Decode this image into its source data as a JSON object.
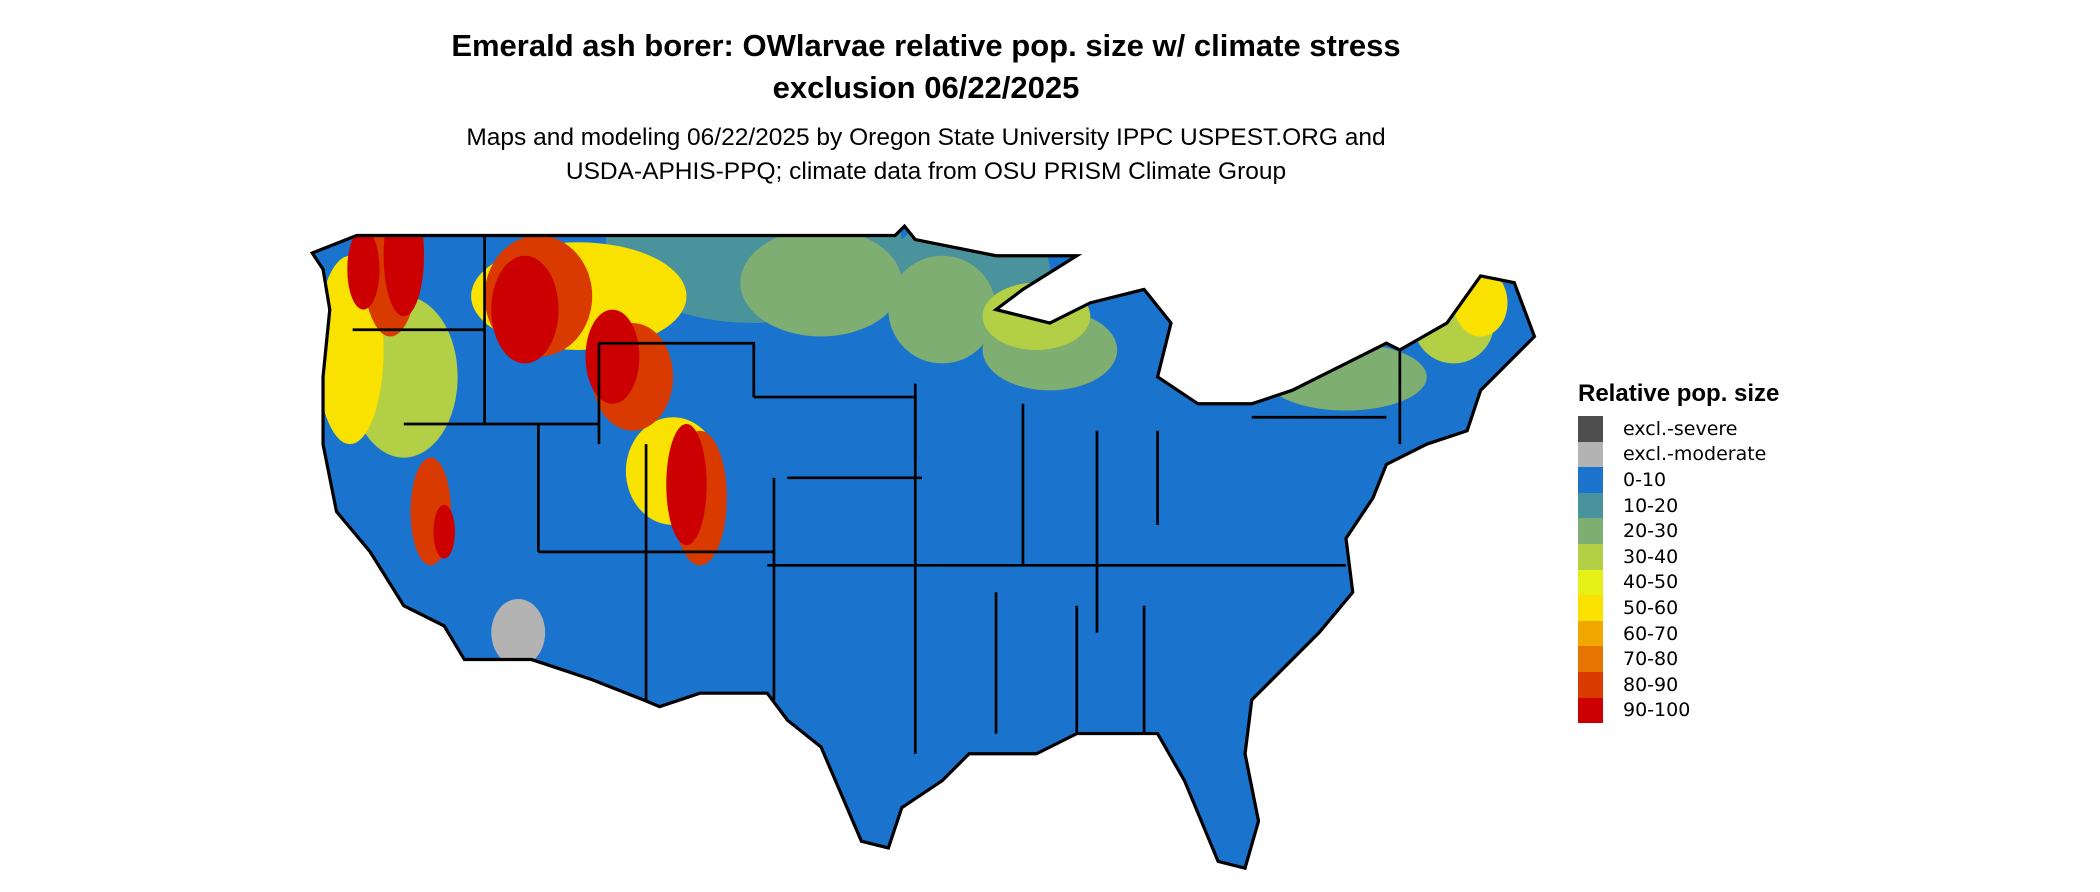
{
  "title_line1": "Emerald ash borer: OWlarvae relative pop. size w/ climate stress",
  "title_line2": "exclusion 06/22/2025",
  "subtitle_line1": "Maps and modeling 06/22/2025 by Oregon State University IPPC USPEST.ORG and",
  "subtitle_line2": "USDA-APHIS-PPQ; climate data from OSU PRISM Climate Group",
  "map": {
    "region": "Contiguous United States",
    "boundaries": "state lines",
    "predominant_class": "0-10"
  },
  "legend": {
    "title": "Relative pop. size",
    "placement": "right",
    "items": [
      {
        "label": "excl.-severe",
        "color": "#4d4d4d"
      },
      {
        "label": "excl.-moderate",
        "color": "#b3b3b3"
      },
      {
        "label": "0-10",
        "color": "#1a73cc"
      },
      {
        "label": "10-20",
        "color": "#4a929c"
      },
      {
        "label": "20-30",
        "color": "#7fae72"
      },
      {
        "label": "30-40",
        "color": "#b3cf45"
      },
      {
        "label": "40-50",
        "color": "#e5f018"
      },
      {
        "label": "50-60",
        "color": "#f9e200"
      },
      {
        "label": "60-70",
        "color": "#f0a800"
      },
      {
        "label": "70-80",
        "color": "#e57400"
      },
      {
        "label": "80-90",
        "color": "#d93a00"
      },
      {
        "label": "90-100",
        "color": "#cc0000"
      }
    ]
  }
}
